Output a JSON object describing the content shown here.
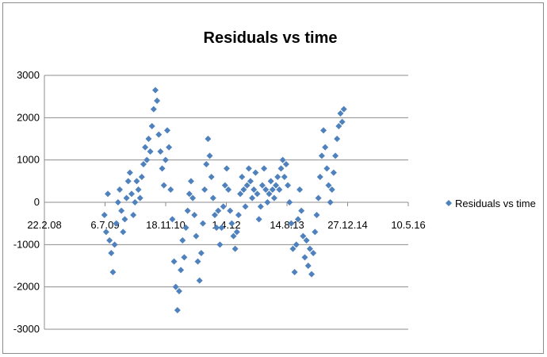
{
  "chart_data": {
    "type": "scatter",
    "title": "Residuals vs time",
    "xlabel": "",
    "ylabel": "",
    "x_ticks": [
      "22.2.08",
      "6.7.09",
      "18.11.10",
      "1.4.12",
      "14.8.13",
      "27.12.14",
      "10.5.16"
    ],
    "x_tick_dates": [
      "2008-02-22",
      "2009-07-06",
      "2010-11-18",
      "2012-04-01",
      "2013-08-14",
      "2014-12-27",
      "2016-05-10"
    ],
    "y_ticks": [
      3000,
      2000,
      1000,
      0,
      -1000,
      -2000,
      -3000
    ],
    "ylim": [
      -3000,
      3000
    ],
    "xlim": [
      "2008-02-22",
      "2016-05-10"
    ],
    "grid": "horizontal",
    "legend_position": "right",
    "marker": "diamond",
    "colors": {
      "series": "#4f81bd"
    },
    "series": [
      {
        "name": "Residuals vs time",
        "points": [
          {
            "x": "2009-07-01",
            "y": -300
          },
          {
            "x": "2009-07-15",
            "y": -700
          },
          {
            "x": "2009-07-29",
            "y": 200
          },
          {
            "x": "2009-08-12",
            "y": -900
          },
          {
            "x": "2009-08-26",
            "y": -1200
          },
          {
            "x": "2009-09-09",
            "y": -1650
          },
          {
            "x": "2009-09-23",
            "y": -1000
          },
          {
            "x": "2009-10-07",
            "y": -500
          },
          {
            "x": "2009-10-21",
            "y": 0
          },
          {
            "x": "2009-11-04",
            "y": 300
          },
          {
            "x": "2009-11-18",
            "y": -200
          },
          {
            "x": "2009-12-02",
            "y": -700
          },
          {
            "x": "2009-12-16",
            "y": -400
          },
          {
            "x": "2009-12-30",
            "y": 100
          },
          {
            "x": "2010-01-13",
            "y": 500
          },
          {
            "x": "2010-01-27",
            "y": 700
          },
          {
            "x": "2010-02-10",
            "y": 200
          },
          {
            "x": "2010-02-24",
            "y": -300
          },
          {
            "x": "2010-03-10",
            "y": 0
          },
          {
            "x": "2010-03-24",
            "y": 500
          },
          {
            "x": "2010-04-07",
            "y": 300
          },
          {
            "x": "2010-04-21",
            "y": 100
          },
          {
            "x": "2010-05-05",
            "y": 600
          },
          {
            "x": "2010-05-19",
            "y": 900
          },
          {
            "x": "2010-06-02",
            "y": 1300
          },
          {
            "x": "2010-06-16",
            "y": 1000
          },
          {
            "x": "2010-06-30",
            "y": 1500
          },
          {
            "x": "2010-07-14",
            "y": 1200
          },
          {
            "x": "2010-07-28",
            "y": 1800
          },
          {
            "x": "2010-08-11",
            "y": 2200
          },
          {
            "x": "2010-08-25",
            "y": 2650
          },
          {
            "x": "2010-09-08",
            "y": 2400
          },
          {
            "x": "2010-09-22",
            "y": 1600
          },
          {
            "x": "2010-10-06",
            "y": 1200
          },
          {
            "x": "2010-10-20",
            "y": 800
          },
          {
            "x": "2010-11-03",
            "y": 400
          },
          {
            "x": "2010-11-17",
            "y": 1000
          },
          {
            "x": "2010-12-01",
            "y": 1700
          },
          {
            "x": "2010-12-15",
            "y": 1300
          },
          {
            "x": "2010-12-29",
            "y": 300
          },
          {
            "x": "2011-01-12",
            "y": -400
          },
          {
            "x": "2011-01-26",
            "y": -1400
          },
          {
            "x": "2011-02-09",
            "y": -2000
          },
          {
            "x": "2011-02-23",
            "y": -2550
          },
          {
            "x": "2011-03-09",
            "y": -2100
          },
          {
            "x": "2011-03-23",
            "y": -1600
          },
          {
            "x": "2011-04-06",
            "y": -900
          },
          {
            "x": "2011-04-20",
            "y": -1300
          },
          {
            "x": "2011-05-04",
            "y": -600
          },
          {
            "x": "2011-05-18",
            "y": -200
          },
          {
            "x": "2011-06-01",
            "y": 200
          },
          {
            "x": "2011-06-15",
            "y": 500
          },
          {
            "x": "2011-06-29",
            "y": 100
          },
          {
            "x": "2011-07-13",
            "y": -300
          },
          {
            "x": "2011-07-27",
            "y": -800
          },
          {
            "x": "2011-08-10",
            "y": -1400
          },
          {
            "x": "2011-08-24",
            "y": -1850
          },
          {
            "x": "2011-09-07",
            "y": -1200
          },
          {
            "x": "2011-09-21",
            "y": -500
          },
          {
            "x": "2011-10-05",
            "y": 300
          },
          {
            "x": "2011-10-19",
            "y": 900
          },
          {
            "x": "2011-11-02",
            "y": 1500
          },
          {
            "x": "2011-11-16",
            "y": 1100
          },
          {
            "x": "2011-11-30",
            "y": 600
          },
          {
            "x": "2011-12-14",
            "y": 100
          },
          {
            "x": "2011-12-28",
            "y": -300
          },
          {
            "x": "2012-01-11",
            "y": -600
          },
          {
            "x": "2012-01-25",
            "y": -200
          },
          {
            "x": "2012-02-08",
            "y": -1000
          },
          {
            "x": "2012-02-22",
            "y": -600
          },
          {
            "x": "2012-03-07",
            "y": -100
          },
          {
            "x": "2012-03-21",
            "y": 400
          },
          {
            "x": "2012-04-04",
            "y": 800
          },
          {
            "x": "2012-04-18",
            "y": 300
          },
          {
            "x": "2012-05-02",
            "y": -200
          },
          {
            "x": "2012-05-16",
            "y": -500
          },
          {
            "x": "2012-05-30",
            "y": -800
          },
          {
            "x": "2012-06-13",
            "y": -1100
          },
          {
            "x": "2012-06-27",
            "y": -700
          },
          {
            "x": "2012-07-11",
            "y": -300
          },
          {
            "x": "2012-07-25",
            "y": 200
          },
          {
            "x": "2012-08-08",
            "y": 600
          },
          {
            "x": "2012-08-22",
            "y": 300
          },
          {
            "x": "2012-09-05",
            "y": -100
          },
          {
            "x": "2012-09-19",
            "y": 400
          },
          {
            "x": "2012-10-03",
            "y": 800
          },
          {
            "x": "2012-10-17",
            "y": 500
          },
          {
            "x": "2012-10-31",
            "y": 100
          },
          {
            "x": "2012-11-14",
            "y": 300
          },
          {
            "x": "2012-11-28",
            "y": 700
          },
          {
            "x": "2012-12-12",
            "y": 200
          },
          {
            "x": "2012-12-26",
            "y": -400
          },
          {
            "x": "2013-01-09",
            "y": -100
          },
          {
            "x": "2013-01-23",
            "y": 400
          },
          {
            "x": "2013-02-06",
            "y": 800
          },
          {
            "x": "2013-02-20",
            "y": 300
          },
          {
            "x": "2013-03-06",
            "y": 0
          },
          {
            "x": "2013-03-20",
            "y": 200
          },
          {
            "x": "2013-04-03",
            "y": 500
          },
          {
            "x": "2013-04-17",
            "y": 300
          },
          {
            "x": "2013-05-01",
            "y": 100
          },
          {
            "x": "2013-05-15",
            "y": 400
          },
          {
            "x": "2013-05-29",
            "y": 600
          },
          {
            "x": "2013-06-12",
            "y": 300
          },
          {
            "x": "2013-06-26",
            "y": 800
          },
          {
            "x": "2013-07-10",
            "y": 1000
          },
          {
            "x": "2013-07-24",
            "y": 600
          },
          {
            "x": "2013-08-07",
            "y": 900
          },
          {
            "x": "2013-08-21",
            "y": 400
          },
          {
            "x": "2013-09-04",
            "y": 0
          },
          {
            "x": "2013-09-18",
            "y": -500
          },
          {
            "x": "2013-10-02",
            "y": -1100
          },
          {
            "x": "2013-10-16",
            "y": -1650
          },
          {
            "x": "2013-10-30",
            "y": -1000
          },
          {
            "x": "2013-11-13",
            "y": -400
          },
          {
            "x": "2013-11-27",
            "y": 300
          },
          {
            "x": "2013-12-11",
            "y": -200
          },
          {
            "x": "2013-12-25",
            "y": -800
          },
          {
            "x": "2014-01-08",
            "y": -1300
          },
          {
            "x": "2014-01-22",
            "y": -900
          },
          {
            "x": "2014-02-05",
            "y": -1500
          },
          {
            "x": "2014-02-19",
            "y": -1100
          },
          {
            "x": "2014-03-05",
            "y": -1700
          },
          {
            "x": "2014-03-19",
            "y": -1200
          },
          {
            "x": "2014-04-02",
            "y": -700
          },
          {
            "x": "2014-04-16",
            "y": -300
          },
          {
            "x": "2014-04-30",
            "y": 100
          },
          {
            "x": "2014-05-14",
            "y": 600
          },
          {
            "x": "2014-05-28",
            "y": 1100
          },
          {
            "x": "2014-06-11",
            "y": 1700
          },
          {
            "x": "2014-06-25",
            "y": 1300
          },
          {
            "x": "2014-07-09",
            "y": 800
          },
          {
            "x": "2014-07-23",
            "y": 400
          },
          {
            "x": "2014-08-06",
            "y": 0
          },
          {
            "x": "2014-08-20",
            "y": 300
          },
          {
            "x": "2014-09-03",
            "y": 700
          },
          {
            "x": "2014-09-17",
            "y": 1100
          },
          {
            "x": "2014-10-01",
            "y": 1500
          },
          {
            "x": "2014-10-15",
            "y": 1800
          },
          {
            "x": "2014-10-29",
            "y": 2100
          },
          {
            "x": "2014-11-12",
            "y": 1900
          },
          {
            "x": "2014-11-26",
            "y": 2200
          }
        ]
      }
    ]
  }
}
